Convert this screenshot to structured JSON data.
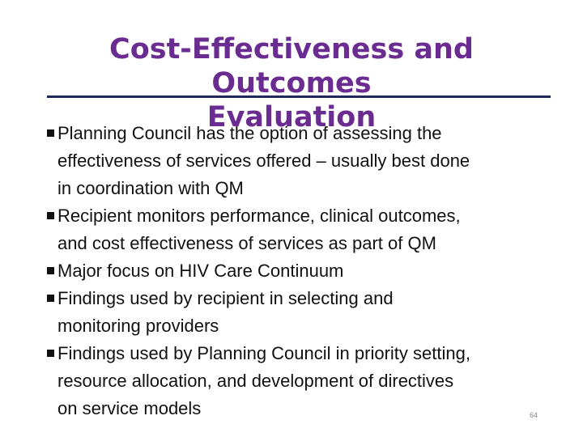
{
  "slide": {
    "title_line1": "Cost-Effectiveness and Outcomes",
    "title_line2": "Evaluation",
    "bullets": [
      {
        "lines": [
          "Planning Council has the option of assessing the",
          "effectiveness of services offered – usually best done",
          "in coordination with QM"
        ]
      },
      {
        "lines": [
          "Recipient monitors performance, clinical outcomes,",
          "and cost effectiveness of services as part of QM"
        ]
      },
      {
        "lines": [
          "Major focus on HIV Care Continuum"
        ]
      },
      {
        "lines": [
          "Findings used by recipient in selecting and",
          "monitoring providers"
        ]
      },
      {
        "lines": [
          "Findings used by Planning Council in priority setting,",
          "resource allocation, and development of directives",
          "on service models"
        ]
      }
    ],
    "page_number": "64",
    "colors": {
      "title": "#6a2c91",
      "rule": "#1f2a5a",
      "text": "#111111"
    }
  }
}
